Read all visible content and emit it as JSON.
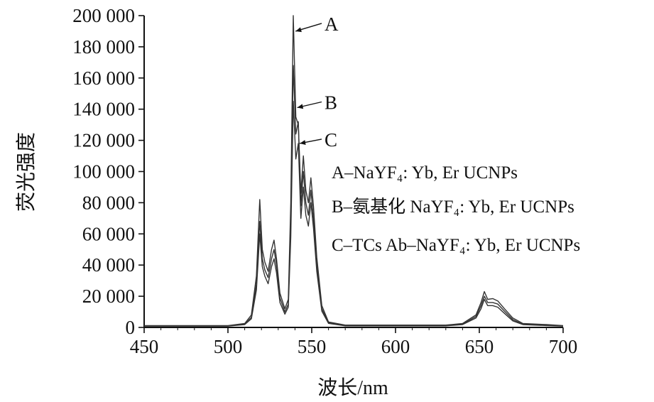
{
  "chart_data": {
    "type": "line",
    "title": "",
    "xlabel": "波长/nm",
    "ylabel": "荧光强度",
    "xlim": [
      450,
      700
    ],
    "ylim": [
      0,
      200000
    ],
    "xticks": [
      450,
      500,
      550,
      600,
      650,
      700
    ],
    "xtick_labels": [
      "450",
      "500",
      "550",
      "600",
      "650",
      "700"
    ],
    "yticks": [
      0,
      20000,
      40000,
      60000,
      80000,
      100000,
      120000,
      140000,
      160000,
      180000,
      200000
    ],
    "ytick_labels": [
      "0",
      "20 000",
      "40 000",
      "60 000",
      "80 000",
      "100 000",
      "120 000",
      "140 000",
      "160 000",
      "180 000",
      "200 000"
    ],
    "grid": false,
    "legend_position": "right",
    "line_color": "#333333",
    "series": [
      {
        "name": "A",
        "legend": "A–NaYF₄: Yb, Er UCNPs",
        "points": [
          [
            450,
            1200
          ],
          [
            500,
            1200
          ],
          [
            510,
            2500
          ],
          [
            514,
            8000
          ],
          [
            517,
            33000
          ],
          [
            519,
            82000
          ],
          [
            520.5,
            50000
          ],
          [
            522,
            42000
          ],
          [
            524,
            36000
          ],
          [
            526,
            50000
          ],
          [
            527.5,
            56000
          ],
          [
            529,
            44000
          ],
          [
            531,
            22000
          ],
          [
            534,
            12000
          ],
          [
            536,
            18000
          ],
          [
            537.5,
            80000
          ],
          [
            539,
            200000
          ],
          [
            540.5,
            135000
          ],
          [
            542,
            130000
          ],
          [
            543.5,
            86000
          ],
          [
            545,
            110000
          ],
          [
            546.5,
            88000
          ],
          [
            548,
            80000
          ],
          [
            549.5,
            96000
          ],
          [
            551,
            78000
          ],
          [
            553,
            45000
          ],
          [
            556,
            14000
          ],
          [
            560,
            3500
          ],
          [
            570,
            1500
          ],
          [
            630,
            1500
          ],
          [
            640,
            2500
          ],
          [
            648,
            8000
          ],
          [
            651,
            16000
          ],
          [
            653,
            23000
          ],
          [
            655,
            18000
          ],
          [
            658,
            18500
          ],
          [
            661,
            17000
          ],
          [
            665,
            12000
          ],
          [
            670,
            6000
          ],
          [
            676,
            2500
          ],
          [
            690,
            1800
          ],
          [
            700,
            1200
          ]
        ]
      },
      {
        "name": "B",
        "legend": "B–氨基化 NaYF₄: Yb, Er UCNPs",
        "points": [
          [
            450,
            1000
          ],
          [
            500,
            1000
          ],
          [
            510,
            2000
          ],
          [
            514,
            6500
          ],
          [
            517,
            28000
          ],
          [
            519,
            68000
          ],
          [
            520.5,
            44000
          ],
          [
            522,
            37000
          ],
          [
            524,
            32000
          ],
          [
            526,
            44000
          ],
          [
            527.5,
            50000
          ],
          [
            529,
            40000
          ],
          [
            531,
            19000
          ],
          [
            534,
            10000
          ],
          [
            536,
            15000
          ],
          [
            537.5,
            68000
          ],
          [
            539,
            168000
          ],
          [
            540.5,
            124000
          ],
          [
            542,
            132000
          ],
          [
            543.5,
            78000
          ],
          [
            545,
            100000
          ],
          [
            546.5,
            80000
          ],
          [
            548,
            72000
          ],
          [
            549.5,
            88000
          ],
          [
            551,
            70000
          ],
          [
            553,
            40000
          ],
          [
            556,
            12000
          ],
          [
            560,
            3000
          ],
          [
            570,
            1200
          ],
          [
            630,
            1200
          ],
          [
            640,
            2000
          ],
          [
            648,
            7000
          ],
          [
            651,
            14000
          ],
          [
            653,
            20000
          ],
          [
            655,
            16000
          ],
          [
            658,
            16000
          ],
          [
            661,
            15000
          ],
          [
            665,
            10500
          ],
          [
            670,
            5000
          ],
          [
            676,
            2000
          ],
          [
            690,
            1500
          ],
          [
            700,
            1000
          ]
        ]
      },
      {
        "name": "C",
        "legend": "C–TCs Ab–NaYF₄: Yb, Er UCNPs",
        "points": [
          [
            450,
            800
          ],
          [
            500,
            800
          ],
          [
            510,
            1800
          ],
          [
            514,
            5500
          ],
          [
            517,
            24000
          ],
          [
            519,
            60000
          ],
          [
            520.5,
            39000
          ],
          [
            522,
            33000
          ],
          [
            524,
            28000
          ],
          [
            526,
            39000
          ],
          [
            527.5,
            44000
          ],
          [
            529,
            35000
          ],
          [
            531,
            16000
          ],
          [
            534,
            8500
          ],
          [
            536,
            13000
          ],
          [
            537.5,
            58000
          ],
          [
            539,
            145000
          ],
          [
            540.5,
            108000
          ],
          [
            542,
            118000
          ],
          [
            543.5,
            70000
          ],
          [
            545,
            90000
          ],
          [
            546.5,
            72000
          ],
          [
            548,
            65000
          ],
          [
            549.5,
            80000
          ],
          [
            551,
            64000
          ],
          [
            553,
            36000
          ],
          [
            556,
            10500
          ],
          [
            560,
            2600
          ],
          [
            570,
            1000
          ],
          [
            630,
            1000
          ],
          [
            640,
            1800
          ],
          [
            648,
            6000
          ],
          [
            651,
            12000
          ],
          [
            653,
            18000
          ],
          [
            655,
            14000
          ],
          [
            658,
            14000
          ],
          [
            661,
            13000
          ],
          [
            665,
            9000
          ],
          [
            670,
            4200
          ],
          [
            676,
            1800
          ],
          [
            690,
            1200
          ],
          [
            700,
            800
          ]
        ]
      }
    ],
    "annotations": [
      {
        "label": "A",
        "series": "A",
        "x": 539.5,
        "y": 190000
      },
      {
        "label": "B",
        "series": "B",
        "x": 540.5,
        "y": 141000
      },
      {
        "label": "C",
        "series": "C",
        "x": 542,
        "y": 118000
      }
    ]
  }
}
